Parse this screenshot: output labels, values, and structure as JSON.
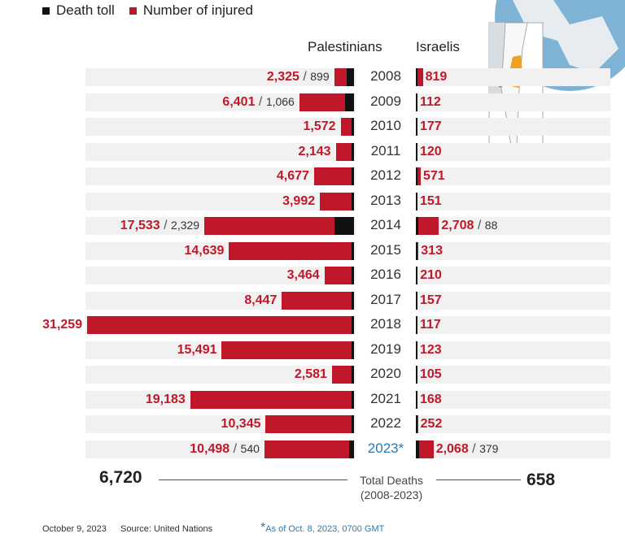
{
  "chart_data": {
    "type": "bar",
    "orientation": "horizontal-diverging",
    "legend": [
      {
        "label": "Death toll",
        "color": "#111111"
      },
      {
        "label": "Number of injured",
        "color": "#c0182a"
      }
    ],
    "legend_position": "top-left",
    "left_title": "Palestinians",
    "right_title": "Israelis",
    "categories": [
      "2008",
      "2009",
      "2010",
      "2011",
      "2012",
      "2013",
      "2014",
      "2015",
      "2016",
      "2017",
      "2018",
      "2019",
      "2020",
      "2021",
      "2022",
      "2023*"
    ],
    "series": [
      {
        "name": "Palestinians injured",
        "values": [
          2325,
          6401,
          1572,
          2143,
          4677,
          3992,
          17533,
          14639,
          3464,
          8447,
          31259,
          15491,
          2581,
          19183,
          10345,
          10498
        ]
      },
      {
        "name": "Palestinians deaths",
        "values": [
          899,
          1066,
          null,
          null,
          null,
          null,
          2329,
          null,
          null,
          null,
          null,
          null,
          null,
          null,
          null,
          540
        ]
      },
      {
        "name": "Israelis injured",
        "values": [
          819,
          112,
          177,
          120,
          571,
          151,
          2708,
          313,
          210,
          157,
          117,
          123,
          105,
          168,
          252,
          2068
        ]
      },
      {
        "name": "Israelis deaths",
        "values": [
          null,
          null,
          null,
          null,
          null,
          null,
          88,
          null,
          null,
          null,
          null,
          null,
          null,
          null,
          null,
          379
        ]
      }
    ],
    "labels": {
      "pal_injured": [
        "2,325",
        "6,401",
        "1,572",
        "2,143",
        "4,677",
        "3,992",
        "17,533",
        "14,639",
        "3,464",
        "8,447",
        "31,259",
        "15,491",
        "2,581",
        "19,183",
        "10,345",
        "10,498"
      ],
      "pal_deaths": [
        "899",
        "1,066",
        "",
        "",
        "",
        "",
        "2,329",
        "",
        "",
        "",
        "",
        "",
        "",
        "",
        "",
        "540"
      ],
      "isr_injured": [
        "819",
        "112",
        "177",
        "120",
        "571",
        "151",
        "2,708",
        "313",
        "210",
        "157",
        "117",
        "123",
        "105",
        "168",
        "252",
        "2,068"
      ],
      "isr_deaths": [
        "",
        "",
        "",
        "",
        "",
        "",
        "88",
        "",
        "",
        "",
        "",
        "",
        "",
        "",
        "",
        "379"
      ]
    },
    "highlight_category_color": "#2a7ab0",
    "totals": {
      "palestinians": "6,720",
      "israelis": "658",
      "label_line1": "Total Deaths",
      "label_line2": "(2008-2023)"
    }
  },
  "footer": {
    "date": "October 9, 2023",
    "source": "Source: United Nations",
    "note_star": "*",
    "note": "As of Oct. 8, 2023, 0700 GMT"
  },
  "colors": {
    "injured": "#c0182a",
    "death": "#111111",
    "band": "#f1f1f1",
    "map_highlight": "#f0a020"
  }
}
